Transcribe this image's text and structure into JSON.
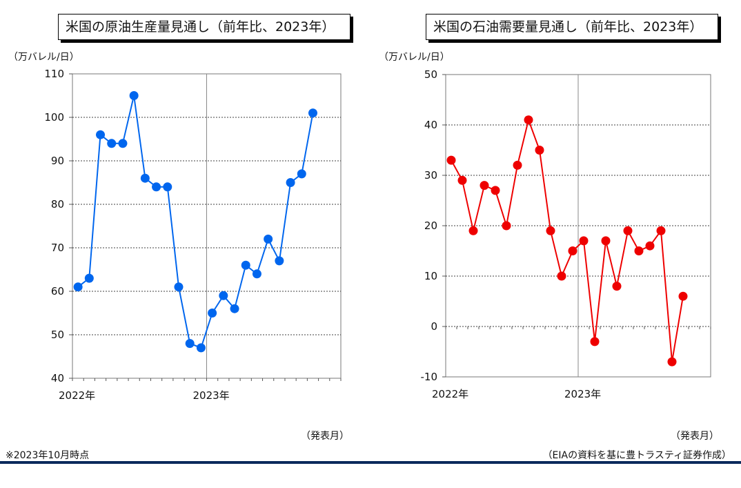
{
  "left_title": "米国の原油生産量見通し（前年比、2023年）",
  "right_title": "米国の石油需要量見通し（前年比、2023年）",
  "unit_label": "（万バレル/日）",
  "x_axis_title": "（発表月）",
  "footnote_left": "※2023年10月時点",
  "footnote_right": "（EIAの資料を基に豊トラスティ証券作成）",
  "colors": {
    "left_series": "#0066ee",
    "right_series": "#ee0000",
    "grid": "#000000"
  },
  "chart_data": [
    {
      "type": "line",
      "title": "米国の原油生産量見通し（前年比、2023年）",
      "ylabel": "（万バレル/日）",
      "xlabel": "（発表月）",
      "ylim": [
        40,
        110
      ],
      "yticks": [
        40,
        50,
        60,
        70,
        80,
        90,
        100,
        110
      ],
      "x_tick_labels": [
        "2022年",
        "2023年"
      ],
      "x": [
        "2022-01",
        "2022-02",
        "2022-03",
        "2022-04",
        "2022-05",
        "2022-06",
        "2022-07",
        "2022-08",
        "2022-09",
        "2022-10",
        "2022-11",
        "2022-12",
        "2023-01",
        "2023-02",
        "2023-03",
        "2023-04",
        "2023-05",
        "2023-06",
        "2023-07",
        "2023-08",
        "2023-09",
        "2023-10"
      ],
      "series": [
        {
          "values": [
            61,
            63,
            96,
            94,
            94,
            105,
            86,
            84,
            84,
            61,
            48,
            47,
            55,
            59,
            56,
            66,
            64,
            72,
            67,
            85,
            87,
            101
          ]
        }
      ],
      "grid": true
    },
    {
      "type": "line",
      "title": "米国の石油需要量見通し（前年比、2023年）",
      "ylabel": "（万バレル/日）",
      "xlabel": "（発表月）",
      "ylim": [
        -10,
        50
      ],
      "yticks": [
        -10,
        0,
        10,
        20,
        30,
        40,
        50
      ],
      "x_tick_labels": [
        "2022年",
        "2023年"
      ],
      "x": [
        "2022-01",
        "2022-02",
        "2022-03",
        "2022-04",
        "2022-05",
        "2022-06",
        "2022-07",
        "2022-08",
        "2022-09",
        "2022-10",
        "2022-11",
        "2022-12",
        "2023-01",
        "2023-02",
        "2023-03",
        "2023-04",
        "2023-05",
        "2023-06",
        "2023-07",
        "2023-08",
        "2023-09",
        "2023-10"
      ],
      "series": [
        {
          "values": [
            33,
            29,
            19,
            28,
            27,
            20,
            32,
            41,
            35,
            19,
            10,
            15,
            17,
            -3,
            17,
            8,
            19,
            15,
            16,
            19,
            -7,
            6
          ]
        }
      ],
      "grid": true
    }
  ]
}
